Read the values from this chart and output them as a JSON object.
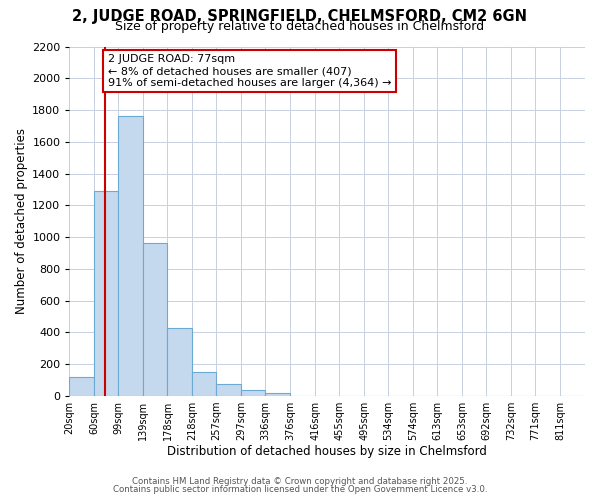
{
  "title": "2, JUDGE ROAD, SPRINGFIELD, CHELMSFORD, CM2 6GN",
  "subtitle": "Size of property relative to detached houses in Chelmsford",
  "xlabel": "Distribution of detached houses by size in Chelmsford",
  "ylabel": "Number of detached properties",
  "bin_labels": [
    "20sqm",
    "60sqm",
    "99sqm",
    "139sqm",
    "178sqm",
    "218sqm",
    "257sqm",
    "297sqm",
    "336sqm",
    "376sqm",
    "416sqm",
    "455sqm",
    "495sqm",
    "534sqm",
    "574sqm",
    "613sqm",
    "653sqm",
    "692sqm",
    "732sqm",
    "771sqm",
    "811sqm"
  ],
  "bar_values": [
    120,
    1290,
    1760,
    960,
    430,
    150,
    75,
    35,
    18,
    0,
    0,
    0,
    0,
    0,
    0,
    0,
    0,
    0,
    0,
    0,
    0
  ],
  "bar_color": "#c5d9ee",
  "bar_edge_color": "#6aaad4",
  "vline_x": 77,
  "bin_edges": [
    20,
    60,
    99,
    139,
    178,
    218,
    257,
    297,
    336,
    376,
    416,
    455,
    495,
    534,
    574,
    613,
    653,
    692,
    732,
    771,
    811
  ],
  "annotation_text": "2 JUDGE ROAD: 77sqm\n← 8% of detached houses are smaller (407)\n91% of semi-detached houses are larger (4,364) →",
  "annotation_box_color": "#ffffff",
  "annotation_box_edge": "#cc0000",
  "vline_color": "#cc0000",
  "ylim": [
    0,
    2200
  ],
  "yticks": [
    0,
    200,
    400,
    600,
    800,
    1000,
    1200,
    1400,
    1600,
    1800,
    2000,
    2200
  ],
  "bg_color": "#ffffff",
  "plot_bg_color": "#ffffff",
  "grid_color": "#c8d0e0",
  "footer1": "Contains HM Land Registry data © Crown copyright and database right 2025.",
  "footer2": "Contains public sector information licensed under the Open Government Licence v3.0.",
  "title_fontsize": 10.5,
  "subtitle_fontsize": 9,
  "xlabel_fontsize": 8.5,
  "ylabel_fontsize": 8.5
}
